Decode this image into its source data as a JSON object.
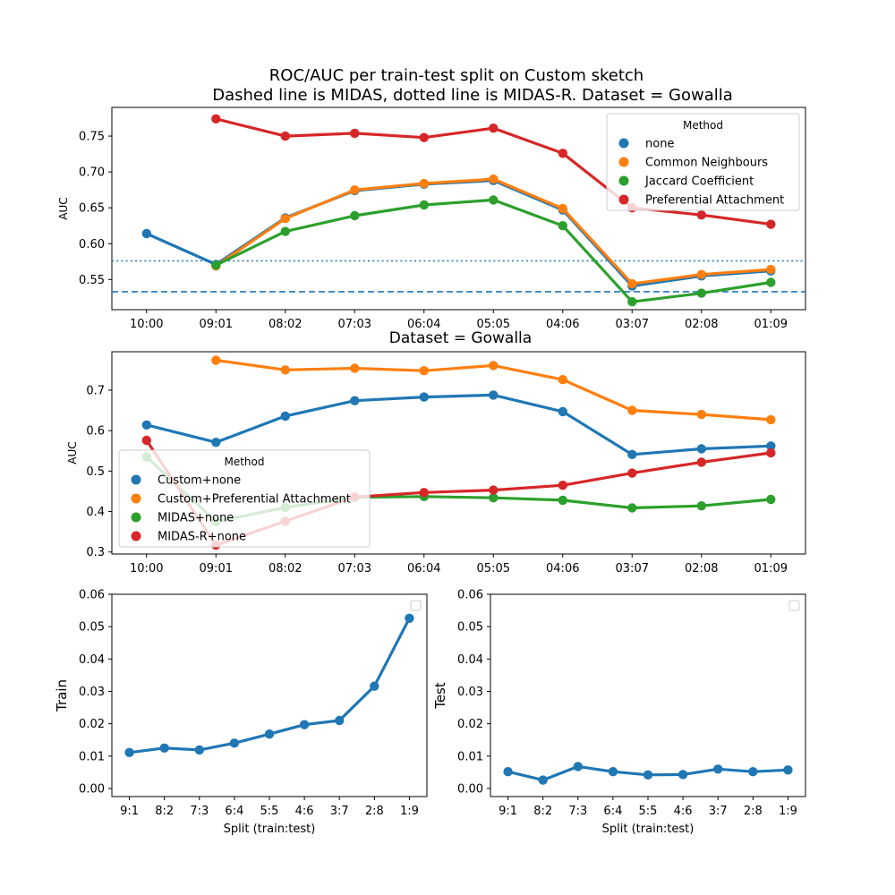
{
  "figure": {
    "title_line1": "ROC/AUC per train-test split on Custom sketch",
    "title_line2": "Dashed line is MIDAS, dotted line is MIDAS-R. Dataset = Gowalla"
  },
  "colors": {
    "blue": "#1f77b4",
    "orange": "#ff7f0e",
    "green": "#2ca02c",
    "red": "#d62728"
  },
  "chart_data": [
    {
      "type": "line",
      "title": "",
      "xlabel": "",
      "ylabel": "AUC",
      "categories": [
        "10:00",
        "09:01",
        "08:02",
        "07:03",
        "06:04",
        "05:05",
        "04:06",
        "03:07",
        "02:08",
        "01:09"
      ],
      "ylim": [
        0.508,
        0.79
      ],
      "yticks": [
        0.55,
        0.6,
        0.65,
        0.7,
        0.75
      ],
      "ytick_labels": [
        "0.55",
        "0.60",
        "0.65",
        "0.70",
        "0.75"
      ],
      "legend": {
        "title": "Method",
        "placement": "top-right"
      },
      "series": [
        {
          "name": "none",
          "color": "#1f77b4",
          "values": [
            0.614,
            0.571,
            0.636,
            0.674,
            0.683,
            0.688,
            0.647,
            0.541,
            0.555,
            0.562
          ]
        },
        {
          "name": "Common Neighbours",
          "color": "#ff7f0e",
          "values": [
            null,
            0.569,
            0.635,
            0.675,
            0.684,
            0.69,
            0.649,
            0.544,
            0.557,
            0.564
          ]
        },
        {
          "name": "Jaccard Coefficient",
          "color": "#2ca02c",
          "values": [
            null,
            0.57,
            0.617,
            0.639,
            0.654,
            0.661,
            0.625,
            0.519,
            0.531,
            0.546
          ]
        },
        {
          "name": "Preferential Attachment",
          "color": "#d62728",
          "values": [
            null,
            0.774,
            0.75,
            0.754,
            0.748,
            0.761,
            0.726,
            0.65,
            0.64,
            0.627
          ]
        }
      ],
      "reference_lines": [
        {
          "style": "dashed",
          "value": 0.533,
          "color": "#1f77b4"
        },
        {
          "style": "dotted",
          "value": 0.576,
          "color": "#1f77b4"
        }
      ],
      "grid": false
    },
    {
      "type": "line",
      "title": "Dataset = Gowalla",
      "xlabel": "",
      "ylabel": "AUC",
      "categories": [
        "10:00",
        "09:01",
        "08:02",
        "07:03",
        "06:04",
        "05:05",
        "04:06",
        "03:07",
        "02:08",
        "01:09"
      ],
      "ylim": [
        0.295,
        0.795
      ],
      "yticks": [
        0.3,
        0.4,
        0.5,
        0.6,
        0.7
      ],
      "ytick_labels": [
        "0.3",
        "0.4",
        "0.5",
        "0.6",
        "0.7"
      ],
      "legend": {
        "title": "Method",
        "placement": "lower-left"
      },
      "series": [
        {
          "name": "Custom+none",
          "color": "#1f77b4",
          "values": [
            0.614,
            0.571,
            0.636,
            0.674,
            0.683,
            0.688,
            0.647,
            0.541,
            0.555,
            0.562
          ]
        },
        {
          "name": "Custom+Preferential Attachment",
          "color": "#ff7f0e",
          "values": [
            null,
            0.774,
            0.75,
            0.754,
            0.748,
            0.761,
            0.726,
            0.65,
            0.64,
            0.627
          ]
        },
        {
          "name": "MIDAS+none",
          "color": "#2ca02c",
          "values": [
            0.535,
            0.375,
            0.41,
            0.435,
            0.437,
            0.434,
            0.428,
            0.409,
            0.414,
            0.43
          ]
        },
        {
          "name": "MIDAS-R+none",
          "color": "#d62728",
          "values": [
            0.576,
            0.317,
            0.376,
            0.436,
            0.447,
            0.453,
            0.465,
            0.495,
            0.522,
            0.545
          ]
        }
      ],
      "grid": false
    },
    {
      "type": "line",
      "title": "",
      "xlabel": "Split (train:test)",
      "ylabel": "Train",
      "categories": [
        "9:1",
        "8:2",
        "7:3",
        "6:4",
        "5:5",
        "4:6",
        "3:7",
        "2:8",
        "1:9"
      ],
      "ylim": [
        -0.0025,
        0.06
      ],
      "yticks": [
        0.0,
        0.01,
        0.02,
        0.03,
        0.04,
        0.05,
        0.06
      ],
      "ytick_labels": [
        "0.00",
        "0.01",
        "0.02",
        "0.03",
        "0.04",
        "0.05",
        "0.06"
      ],
      "legend": {
        "title": "",
        "placement": "top-right"
      },
      "series": [
        {
          "color": "#1f77b4",
          "values": [
            0.0111,
            0.0125,
            0.0119,
            0.014,
            0.0168,
            0.0197,
            0.021,
            0.0316,
            0.0526
          ]
        }
      ],
      "grid": false
    },
    {
      "type": "line",
      "title": "",
      "xlabel": "Split (train:test)",
      "ylabel": "Test",
      "categories": [
        "9:1",
        "8:2",
        "7:3",
        "6:4",
        "5:5",
        "4:6",
        "3:7",
        "2:8",
        "1:9"
      ],
      "ylim": [
        -0.0025,
        0.06
      ],
      "yticks": [
        0.0,
        0.01,
        0.02,
        0.03,
        0.04,
        0.05,
        0.06
      ],
      "ytick_labels": [
        "0.00",
        "0.01",
        "0.02",
        "0.03",
        "0.04",
        "0.05",
        "0.06"
      ],
      "legend": {
        "title": "",
        "placement": "top-right"
      },
      "series": [
        {
          "color": "#1f77b4",
          "values": [
            0.0052,
            0.0026,
            0.0068,
            0.0052,
            0.0042,
            0.0043,
            0.006,
            0.0052,
            0.0057
          ]
        }
      ],
      "grid": false
    }
  ]
}
